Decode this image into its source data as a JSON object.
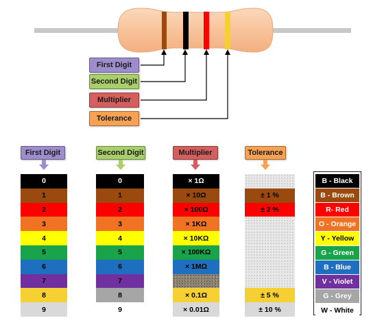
{
  "labels": {
    "first_digit": "First Digit",
    "second_digit": "Second Digit",
    "multiplier": "Multiplier",
    "tolerance": "Tolerance"
  },
  "columns": {
    "first_digit": [
      "0",
      "1",
      "2",
      "3",
      "4",
      "5",
      "6",
      "7",
      "8",
      "9"
    ],
    "second_digit": [
      "0",
      "1",
      "2",
      "3",
      "4",
      "5",
      "6",
      "7",
      "8",
      "9"
    ],
    "multiplier": [
      "× 1Ω",
      "× 10Ω",
      "× 100Ω",
      "× 1KΩ",
      "× 10KΩ",
      "× 100KΩ",
      "× 1MΩ",
      "",
      "× 0.1Ω",
      "× 0.01Ω"
    ],
    "tolerance": [
      "",
      "± 1 %",
      "± 2 %",
      "",
      "",
      "",
      "",
      "",
      "± 5 %",
      "± 10 %"
    ]
  },
  "legend": [
    "B - Black",
    "B - Brown",
    "R- Red",
    "O - Orange",
    "Y - Yellow",
    "G - Green",
    "B - Blue",
    "V - Violet",
    "G - Grey",
    "W - White"
  ],
  "colors": {
    "black": "#000000",
    "brown": "#9a4a0f",
    "red": "#ff0000",
    "orange": "#f07323",
    "yellow": "#ffff00",
    "green": "#19a34a",
    "blue": "#1f6fc0",
    "violet": "#7030a0",
    "grey": "#a6a6a6",
    "white": "#d9d9d9",
    "gold": "#f5d033",
    "silver": "#d9d9d9",
    "first_digit_tag": "#9e8dcc",
    "second_digit_tag": "#a9cf6a",
    "multiplier_tag": "#d55f5f",
    "tolerance_tag": "#f7a252",
    "resistor_body": "#f8c59e",
    "lead": "#c8c8c8"
  }
}
